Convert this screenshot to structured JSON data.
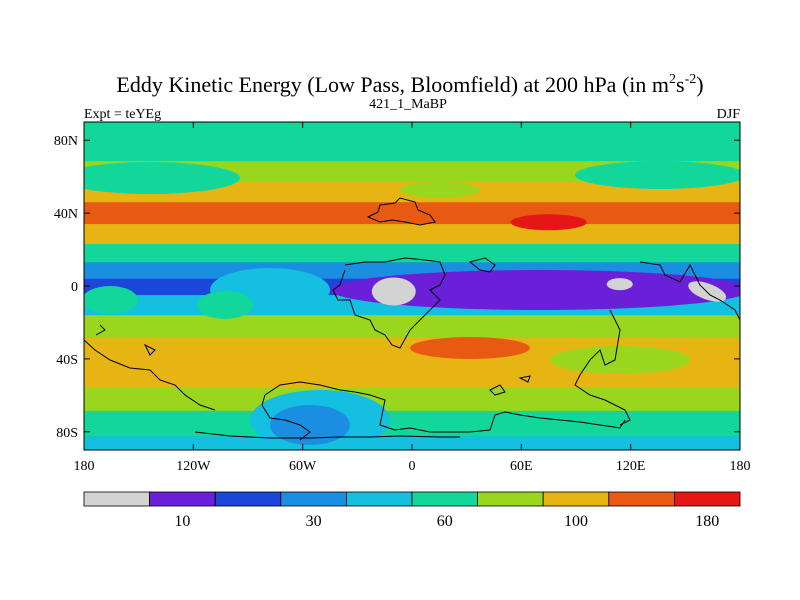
{
  "chart_data": {
    "type": "heatmap",
    "title_main": "Eddy Kinetic Energy (Low Pass, Bloomfield) at 200 hPa (in m",
    "title_sup1": "2",
    "title_mid": "s",
    "title_sup2": "-2",
    "title_end": ")",
    "subtitle_center": "421_1_MaBP",
    "subtitle_left": "Expt = teYEg",
    "subtitle_right": "DJF",
    "x_ticks": [
      {
        "value": -180,
        "label": "180"
      },
      {
        "value": -120,
        "label": "120W"
      },
      {
        "value": -60,
        "label": "60W"
      },
      {
        "value": 0,
        "label": "0"
      },
      {
        "value": 60,
        "label": "60E"
      },
      {
        "value": 120,
        "label": "120E"
      },
      {
        "value": 180,
        "label": "180"
      }
    ],
    "y_ticks": [
      {
        "value": 80,
        "label": "80N"
      },
      {
        "value": 40,
        "label": "40N"
      },
      {
        "value": 0,
        "label": "0"
      },
      {
        "value": -40,
        "label": "40S"
      },
      {
        "value": -80,
        "label": "80S"
      }
    ],
    "xlim": [
      -180,
      180
    ],
    "ylim": [
      -90,
      90
    ],
    "colorbar": {
      "colors": [
        "#d3d3d3",
        "#6a1fd8",
        "#1a46d9",
        "#1a8ee0",
        "#14bfe0",
        "#12d69a",
        "#9ad61e",
        "#e6b413",
        "#e85a12",
        "#e51616"
      ],
      "label_positions": [
        1,
        3,
        5,
        7,
        9
      ],
      "labels": [
        "10",
        "30",
        "60",
        "100",
        "180"
      ]
    },
    "latitude_profile": [
      {
        "lat": 90,
        "level": 5,
        "value": 65
      },
      {
        "lat": 75,
        "level": 5,
        "value": 70
      },
      {
        "lat": 62,
        "level": 6,
        "value": 85
      },
      {
        "lat": 52,
        "level": 7,
        "value": 115
      },
      {
        "lat": 40,
        "level": 8,
        "value": 150
      },
      {
        "lat": 28,
        "level": 7,
        "value": 115
      },
      {
        "lat": 18,
        "level": 5,
        "value": 70
      },
      {
        "lat": 8,
        "level": 3,
        "value": 35
      },
      {
        "lat": 0,
        "level": 2,
        "value": 20
      },
      {
        "lat": -10,
        "level": 4,
        "value": 50
      },
      {
        "lat": -22,
        "level": 6,
        "value": 85
      },
      {
        "lat": -35,
        "level": 7,
        "value": 115
      },
      {
        "lat": -50,
        "level": 7,
        "value": 110
      },
      {
        "lat": -62,
        "level": 6,
        "value": 90
      },
      {
        "lat": -75,
        "level": 5,
        "value": 65
      },
      {
        "lat": -90,
        "level": 4,
        "value": 45
      }
    ],
    "features": [
      {
        "name": "tropical-minimum-africa",
        "lon": -10,
        "lat": -3,
        "value": 5
      },
      {
        "name": "tropical-minimum-indian-ocean",
        "lon": 114,
        "lat": 1,
        "value": 5
      },
      {
        "name": "tropical-minimum-west-pacific",
        "lon": 162,
        "lat": -3,
        "value": 5
      },
      {
        "name": "jet-maximum-asia",
        "lon": 75,
        "lat": 35,
        "value": 200
      },
      {
        "name": "southern-maximum-indian-ocean",
        "lon": 40,
        "lat": -33,
        "value": 170
      }
    ]
  }
}
